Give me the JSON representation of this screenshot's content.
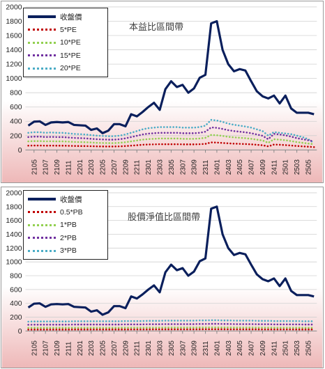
{
  "chart_data": [
    {
      "type": "line",
      "title": "本益比區間帶",
      "ylim": [
        0,
        2000
      ],
      "yticks": [
        0,
        200,
        400,
        600,
        800,
        1000,
        1200,
        1400,
        1600,
        1800,
        2000
      ],
      "x": [
        "2104",
        "2105",
        "2106",
        "2107",
        "2108",
        "2109",
        "2110",
        "2111",
        "2112",
        "2201",
        "2202",
        "2203",
        "2204",
        "2205",
        "2206",
        "2207",
        "2208",
        "2209",
        "2210",
        "2211",
        "2212",
        "2301",
        "2302",
        "2303",
        "2304",
        "2305",
        "2306",
        "2307",
        "2308",
        "2309",
        "2310",
        "2311",
        "2312",
        "2401",
        "2402",
        "2403",
        "2404",
        "2405",
        "2406",
        "2407",
        "2408",
        "2409",
        "2410",
        "2411",
        "2412",
        "2501",
        "2502",
        "2503",
        "2504",
        "2505",
        "2506"
      ],
      "xtick_labels": [
        "2105",
        "2107",
        "2109",
        "2111",
        "2201",
        "2203",
        "2205",
        "2207",
        "2209",
        "2211",
        "2301",
        "2303",
        "2305",
        "2307",
        "2309",
        "2311",
        "2401",
        "2403",
        "2405",
        "2407",
        "2409",
        "2411",
        "2501",
        "2503",
        "2505"
      ],
      "grid": "horizontal",
      "legend_position": "top-left",
      "series": [
        {
          "name": "收盤價",
          "color": "#0a1f5c",
          "style": "solid",
          "values": [
            340,
            395,
            400,
            350,
            385,
            390,
            385,
            390,
            350,
            345,
            340,
            280,
            300,
            235,
            270,
            360,
            360,
            330,
            500,
            470,
            530,
            600,
            660,
            560,
            850,
            960,
            880,
            910,
            800,
            860,
            1010,
            1050,
            1770,
            1800,
            1400,
            1200,
            1100,
            1130,
            1110,
            960,
            820,
            750,
            720,
            760,
            650,
            760,
            580,
            520,
            520,
            520,
            500
          ]
        },
        {
          "name": "5*PE",
          "color": "#c00000",
          "style": "dotted",
          "values": [
            60,
            62,
            62,
            60,
            61,
            60,
            60,
            58,
            56,
            55,
            54,
            52,
            50,
            49,
            48,
            48,
            50,
            54,
            60,
            66,
            72,
            76,
            78,
            80,
            80,
            80,
            80,
            78,
            78,
            78,
            80,
            85,
            105,
            103,
            98,
            92,
            88,
            85,
            82,
            78,
            72,
            66,
            50,
            75,
            72,
            68,
            62,
            55,
            50,
            45,
            40
          ]
        },
        {
          "name": "10*PE",
          "color": "#92d050",
          "style": "dotted",
          "values": [
            120,
            124,
            124,
            120,
            122,
            120,
            120,
            116,
            112,
            110,
            108,
            104,
            100,
            98,
            96,
            96,
            100,
            108,
            120,
            132,
            144,
            152,
            156,
            160,
            160,
            160,
            160,
            156,
            156,
            156,
            160,
            170,
            210,
            206,
            196,
            184,
            176,
            170,
            164,
            156,
            144,
            132,
            100,
            150,
            144,
            136,
            124,
            110,
            100,
            90,
            80
          ]
        },
        {
          "name": "15*PE",
          "color": "#7030a0",
          "style": "dotted",
          "values": [
            180,
            186,
            186,
            180,
            183,
            180,
            180,
            174,
            168,
            165,
            162,
            156,
            150,
            147,
            144,
            144,
            150,
            162,
            180,
            198,
            216,
            228,
            234,
            240,
            240,
            240,
            240,
            234,
            234,
            234,
            240,
            255,
            315,
            309,
            294,
            276,
            264,
            255,
            246,
            234,
            216,
            198,
            150,
            225,
            216,
            204,
            186,
            165,
            150,
            135,
            120
          ]
        },
        {
          "name": "20*PE",
          "color": "#4bacc6",
          "style": "dotted",
          "values": [
            240,
            248,
            248,
            240,
            244,
            240,
            240,
            232,
            224,
            220,
            216,
            208,
            200,
            196,
            192,
            192,
            200,
            216,
            240,
            264,
            288,
            304,
            312,
            320,
            320,
            320,
            320,
            312,
            312,
            312,
            320,
            340,
            420,
            412,
            392,
            368,
            352,
            340,
            328,
            312,
            288,
            264,
            200,
            250,
            240,
            230,
            220,
            200,
            180,
            150,
            100
          ]
        }
      ]
    },
    {
      "type": "line",
      "title": "股價淨值比區間帶",
      "ylim": [
        0,
        2000
      ],
      "yticks": [
        0,
        200,
        400,
        600,
        800,
        1000,
        1200,
        1400,
        1600,
        1800,
        2000
      ],
      "x": [
        "2104",
        "2105",
        "2106",
        "2107",
        "2108",
        "2109",
        "2110",
        "2111",
        "2112",
        "2201",
        "2202",
        "2203",
        "2204",
        "2205",
        "2206",
        "2207",
        "2208",
        "2209",
        "2210",
        "2211",
        "2212",
        "2301",
        "2302",
        "2303",
        "2304",
        "2305",
        "2306",
        "2307",
        "2308",
        "2309",
        "2310",
        "2311",
        "2312",
        "2401",
        "2402",
        "2403",
        "2404",
        "2405",
        "2406",
        "2407",
        "2408",
        "2409",
        "2410",
        "2411",
        "2412",
        "2501",
        "2502",
        "2503",
        "2504",
        "2505",
        "2506"
      ],
      "xtick_labels": [
        "2105",
        "2107",
        "2109",
        "2111",
        "2201",
        "2203",
        "2205",
        "2207",
        "2209",
        "2211",
        "2301",
        "2303",
        "2305",
        "2307",
        "2309",
        "2311",
        "2401",
        "2403",
        "2405",
        "2407",
        "2409",
        "2411",
        "2501",
        "2503",
        "2505"
      ],
      "grid": "horizontal",
      "legend_position": "top-left",
      "series": [
        {
          "name": "收盤價",
          "color": "#0a1f5c",
          "style": "solid",
          "values": [
            340,
            395,
            400,
            350,
            385,
            390,
            385,
            390,
            350,
            345,
            340,
            280,
            300,
            235,
            270,
            360,
            360,
            330,
            500,
            470,
            530,
            600,
            660,
            560,
            850,
            960,
            880,
            910,
            800,
            860,
            1010,
            1050,
            1770,
            1800,
            1400,
            1200,
            1100,
            1130,
            1110,
            960,
            820,
            750,
            720,
            760,
            650,
            760,
            580,
            520,
            520,
            520,
            500
          ]
        },
        {
          "name": "0.5*PB",
          "color": "#c00000",
          "style": "dotted",
          "values": [
            20,
            21,
            21,
            21,
            21,
            21,
            21,
            21,
            22,
            22,
            22,
            22,
            22,
            22,
            22,
            22,
            22,
            22,
            23,
            23,
            23,
            23,
            24,
            24,
            24,
            24,
            24,
            24,
            24,
            24,
            25,
            25,
            25,
            25,
            25,
            24,
            24,
            24,
            24,
            24,
            24,
            23,
            23,
            23,
            23,
            23,
            23,
            22,
            22,
            22,
            22
          ]
        },
        {
          "name": "1*PB",
          "color": "#92d050",
          "style": "dotted",
          "values": [
            45,
            46,
            46,
            46,
            46,
            46,
            46,
            46,
            47,
            47,
            47,
            47,
            47,
            47,
            47,
            47,
            47,
            48,
            48,
            48,
            48,
            49,
            49,
            49,
            50,
            50,
            50,
            50,
            50,
            50,
            51,
            51,
            52,
            52,
            51,
            51,
            50,
            50,
            50,
            50,
            49,
            49,
            49,
            48,
            48,
            48,
            48,
            48,
            47,
            47,
            47
          ]
        },
        {
          "name": "2*PB",
          "color": "#7030a0",
          "style": "dotted",
          "values": [
            90,
            92,
            92,
            92,
            92,
            92,
            92,
            92,
            94,
            94,
            94,
            94,
            94,
            94,
            94,
            94,
            94,
            96,
            96,
            96,
            96,
            98,
            98,
            98,
            100,
            100,
            100,
            100,
            100,
            100,
            102,
            102,
            104,
            104,
            102,
            102,
            100,
            100,
            100,
            100,
            98,
            98,
            98,
            96,
            96,
            96,
            96,
            96,
            94,
            94,
            94
          ]
        },
        {
          "name": "3*PB",
          "color": "#4bacc6",
          "style": "dotted",
          "values": [
            135,
            138,
            138,
            138,
            138,
            138,
            138,
            138,
            141,
            141,
            141,
            141,
            141,
            141,
            141,
            141,
            141,
            144,
            144,
            144,
            144,
            147,
            147,
            147,
            150,
            150,
            150,
            150,
            150,
            150,
            153,
            153,
            156,
            156,
            153,
            153,
            150,
            150,
            150,
            150,
            147,
            147,
            147,
            144,
            144,
            144,
            144,
            144,
            141,
            141,
            141
          ]
        }
      ]
    }
  ]
}
